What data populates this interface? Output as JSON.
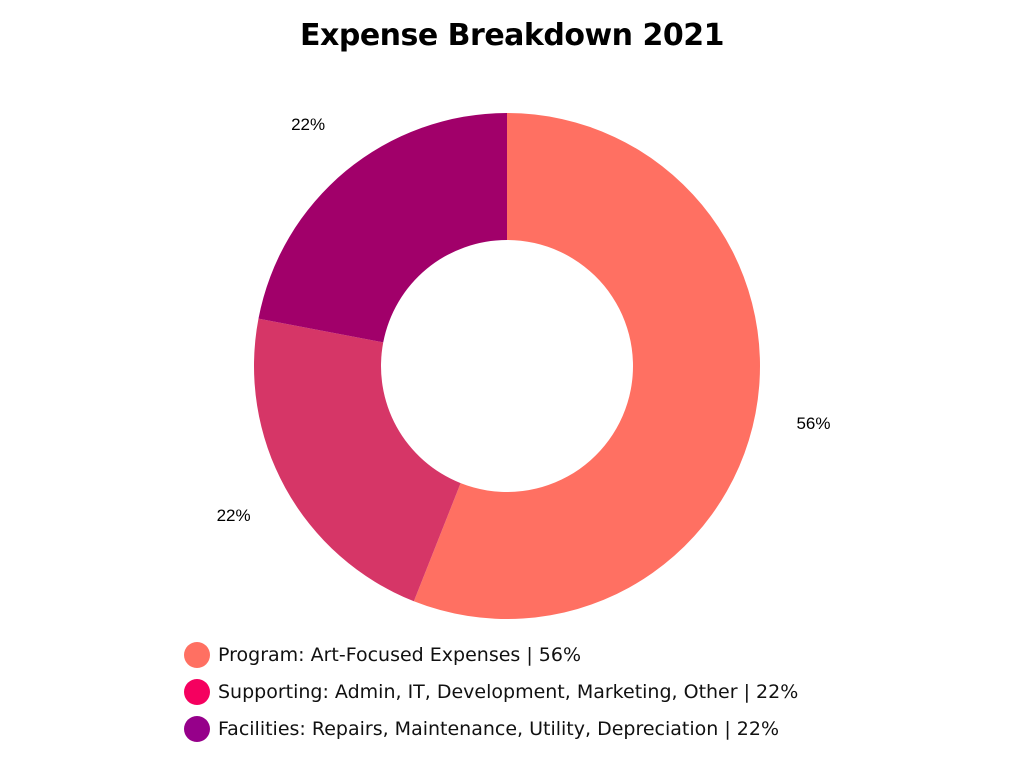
{
  "chart_data": {
    "type": "pie",
    "title": "Expense Breakdown 2021",
    "donut": true,
    "slices": [
      {
        "label": "Program: Art-Focused Expenses | 56%",
        "value": 56,
        "display": "56%",
        "color": "#ff7062"
      },
      {
        "label": "Supporting: Admin, IT, Development, Marketing, Other | 22%",
        "value": 22,
        "display": "22%",
        "color": "#d63667"
      },
      {
        "label": "Facilities: Repairs, Maintenance, Utility, Depreciation | 22%",
        "value": 22,
        "display": "22%",
        "color": "#a1006a"
      }
    ],
    "legend": {
      "placement": "bottom",
      "entries": [
        {
          "label": "Program: Art-Focused Expenses | 56%",
          "color": "#ff7062"
        },
        {
          "label": "Supporting: Admin, IT, Development, Marketing, Other | 22%",
          "color": "#f5005f"
        },
        {
          "label": "Facilities: Repairs, Maintenance, Utility, Depreciation | 22%",
          "color": "#96008a"
        }
      ]
    }
  }
}
